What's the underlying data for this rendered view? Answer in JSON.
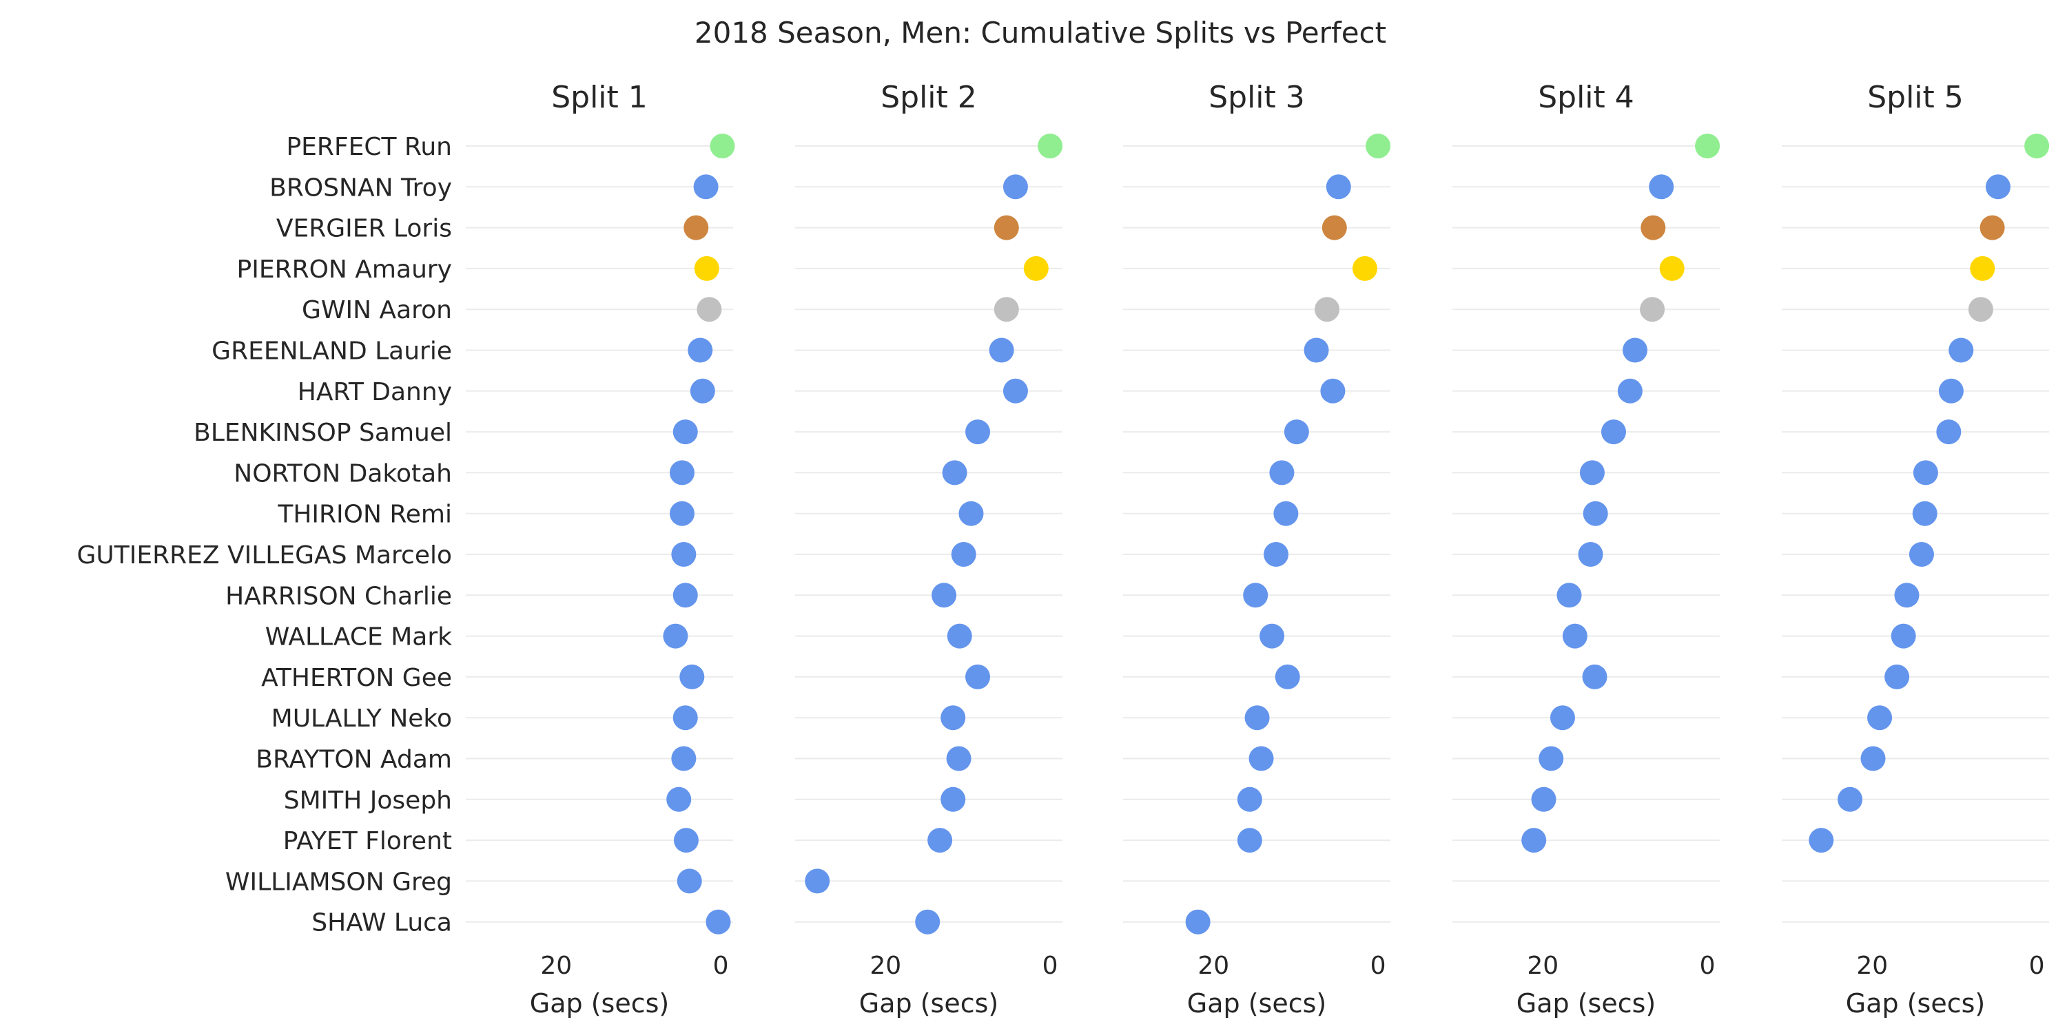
{
  "chart_data": {
    "type": "scatter",
    "title": "2018 Season, Men: Cumulative Splits vs Perfect",
    "riders": [
      "PERFECT Run",
      "BROSNAN Troy",
      "VERGIER Loris",
      "PIERRON Amaury",
      "GWIN Aaron",
      "GREENLAND Laurie",
      "HART Danny",
      "BLENKINSOP Samuel",
      "NORTON Dakotah",
      "THIRION Remi",
      "GUTIERREZ VILLEGAS Marcelo",
      "HARRISON Charlie",
      "WALLACE Mark",
      "ATHERTON Gee",
      "MULALLY Neko",
      "BRAYTON Adam",
      "SMITH Joseph",
      "PAYET Florent",
      "WILLIAMSON Greg",
      "SHAW Luca"
    ],
    "x_axis": {
      "label": "Gap (secs)",
      "reversed": true,
      "ticks": [
        20,
        0
      ]
    },
    "colors": {
      "perfect": "#90ee90",
      "first": "#6495ed",
      "second": "#cd853f",
      "third": "#ffd700",
      "fourth": "#c0c0c0",
      "default": "#6495ed"
    },
    "point_colors": [
      "perfect",
      "first",
      "second",
      "third",
      "fourth",
      "default",
      "default",
      "default",
      "default",
      "default",
      "default",
      "default",
      "default",
      "default",
      "default",
      "default",
      "default",
      "default",
      "default",
      "default"
    ],
    "panels": [
      {
        "title": "Split 1",
        "xlim": [
          31,
          -1.5
        ],
        "values": [
          -0.2,
          1.8,
          3.0,
          1.7,
          1.4,
          2.5,
          2.2,
          4.3,
          4.7,
          4.7,
          4.5,
          4.3,
          5.5,
          3.5,
          4.3,
          4.5,
          5.1,
          4.2,
          3.8,
          0.3
        ]
      },
      {
        "title": "Split 2",
        "xlim": [
          31,
          -1.5
        ],
        "values": [
          0.0,
          4.2,
          5.3,
          1.7,
          5.3,
          5.9,
          4.2,
          8.8,
          11.6,
          9.6,
          10.5,
          12.9,
          11.0,
          8.8,
          11.8,
          11.1,
          11.8,
          13.4,
          28.3,
          14.9
        ]
      },
      {
        "title": "Split 3",
        "xlim": [
          31,
          -1.5
        ],
        "values": [
          0.0,
          4.8,
          5.3,
          1.6,
          6.2,
          7.5,
          5.5,
          9.9,
          11.7,
          11.2,
          12.4,
          14.9,
          12.9,
          11.0,
          14.7,
          14.2,
          15.6,
          15.6,
          0,
          21.9
        ]
      },
      {
        "title": "Split 4",
        "xlim": [
          31,
          -1.5
        ],
        "values": [
          0.0,
          5.6,
          6.6,
          4.3,
          6.7,
          8.8,
          9.4,
          11.4,
          14.0,
          13.6,
          14.2,
          16.8,
          16.1,
          13.7,
          17.6,
          19.0,
          19.9,
          21.1,
          0,
          0
        ]
      },
      {
        "title": "Split 5",
        "xlim": [
          31,
          -1.5
        ],
        "values": [
          0.0,
          4.7,
          5.4,
          6.6,
          6.8,
          9.2,
          10.4,
          10.7,
          13.5,
          13.6,
          14.0,
          15.8,
          16.2,
          17.0,
          19.1,
          19.9,
          22.7,
          26.2,
          0,
          0
        ]
      }
    ],
    "present": [
      [
        true,
        true,
        true,
        true,
        true,
        true,
        true,
        true,
        true,
        true,
        true,
        true,
        true,
        true,
        true,
        true,
        true,
        true,
        true,
        true
      ],
      [
        true,
        true,
        true,
        true,
        true,
        true,
        true,
        true,
        true,
        true,
        true,
        true,
        true,
        true,
        true,
        true,
        true,
        true,
        true,
        true
      ],
      [
        true,
        true,
        true,
        true,
        true,
        true,
        true,
        true,
        true,
        true,
        true,
        true,
        true,
        true,
        true,
        true,
        true,
        true,
        false,
        true
      ],
      [
        true,
        true,
        true,
        true,
        true,
        true,
        true,
        true,
        true,
        true,
        true,
        true,
        true,
        true,
        true,
        true,
        true,
        true,
        false,
        false
      ],
      [
        true,
        true,
        true,
        true,
        true,
        true,
        true,
        true,
        true,
        true,
        true,
        true,
        true,
        true,
        true,
        true,
        true,
        true,
        false,
        false
      ]
    ]
  }
}
